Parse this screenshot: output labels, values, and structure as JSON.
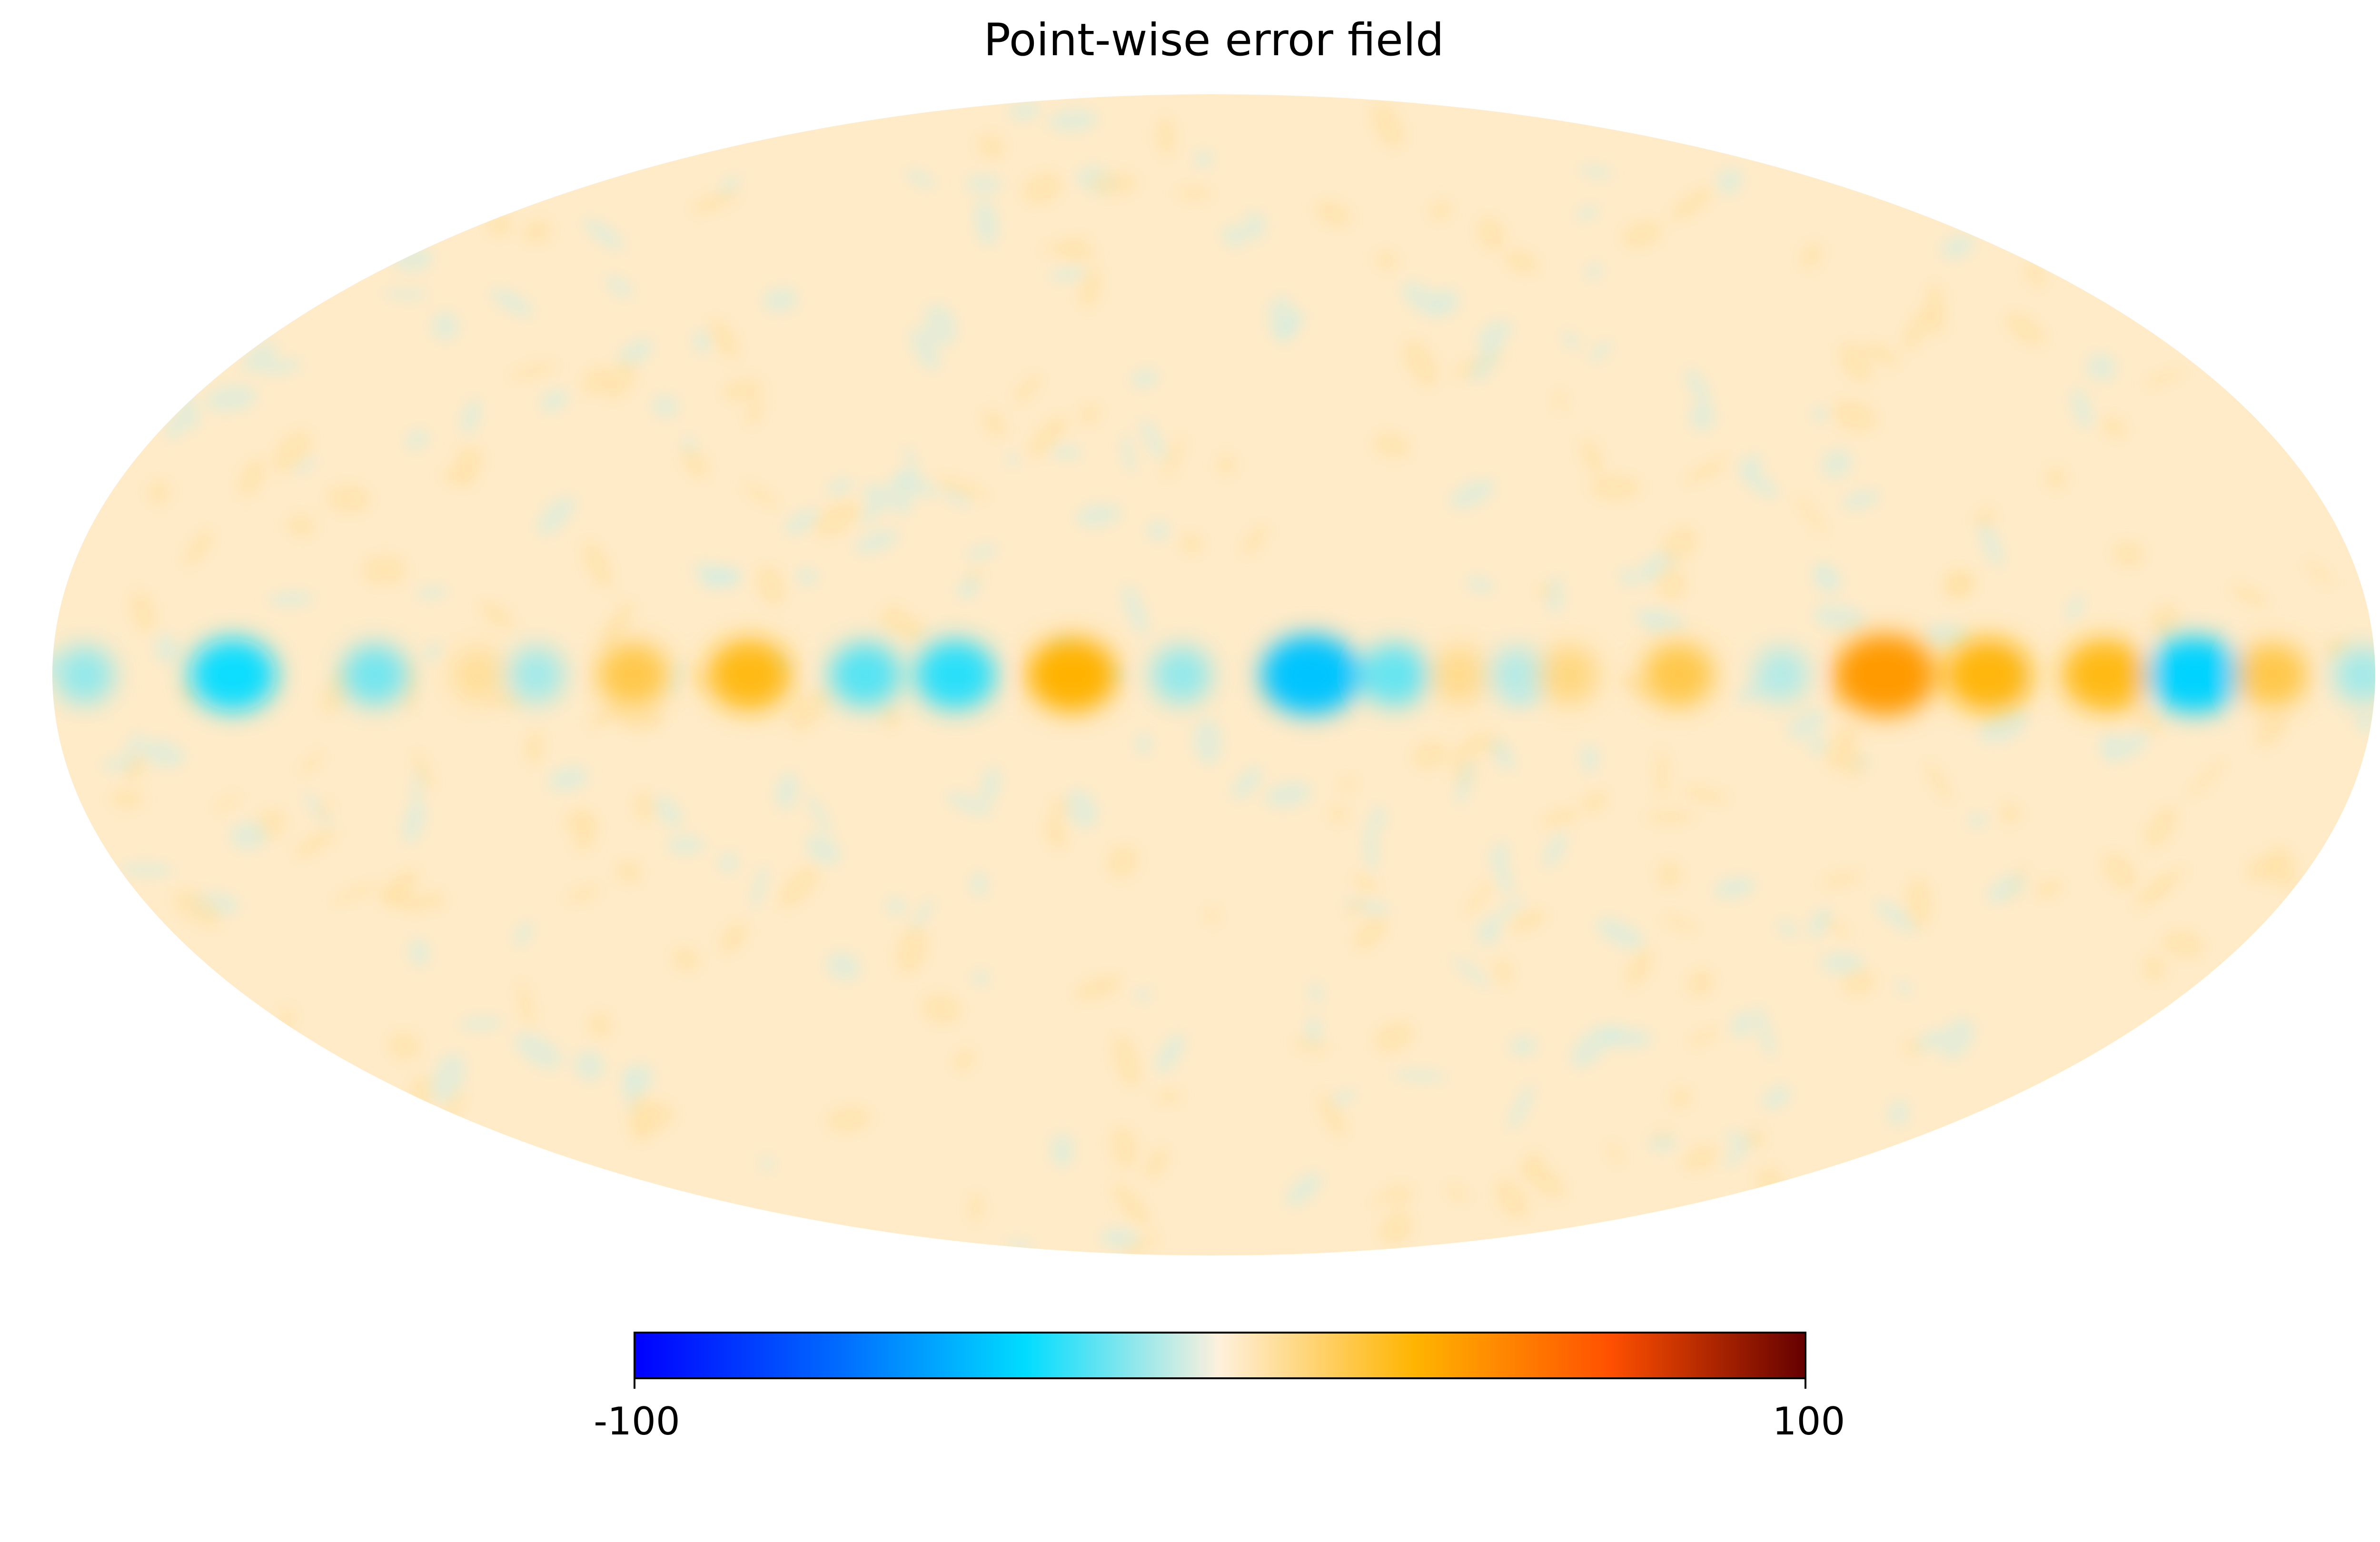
{
  "chart_data": {
    "type": "heatmap",
    "title": "Point-wise error field",
    "projection": "mollweide",
    "colormap": {
      "name": "planck-like diverging",
      "stops": [
        "#0000ff",
        "#0066ff",
        "#00dcff",
        "#fff0dc",
        "#ffb400",
        "#ff5000",
        "#640000"
      ]
    },
    "colorbar": {
      "min": -100,
      "max": 100,
      "tick_labels": [
        "-100",
        "100"
      ],
      "orientation": "horizontal",
      "placement": "bottom"
    },
    "background_value": 3,
    "equatorial_band": [
      {
        "lon": 175,
        "value": -14
      },
      {
        "lon": 152,
        "value": -32
      },
      {
        "lon": 130,
        "value": -18
      },
      {
        "lon": 114,
        "value": 10
      },
      {
        "lon": 105,
        "value": -12
      },
      {
        "lon": 90,
        "value": 22
      },
      {
        "lon": 72,
        "value": 30
      },
      {
        "lon": 54,
        "value": -22
      },
      {
        "lon": 40,
        "value": -28
      },
      {
        "lon": 22,
        "value": 34
      },
      {
        "lon": 5,
        "value": -14
      },
      {
        "lon": -15,
        "value": -40
      },
      {
        "lon": -28,
        "value": -20
      },
      {
        "lon": -38,
        "value": 12
      },
      {
        "lon": -47,
        "value": -10
      },
      {
        "lon": -55,
        "value": 14
      },
      {
        "lon": -72,
        "value": 22
      },
      {
        "lon": -88,
        "value": -10
      },
      {
        "lon": -104,
        "value": 42
      },
      {
        "lon": -120,
        "value": 32
      },
      {
        "lon": -138,
        "value": 30
      },
      {
        "lon": -152,
        "value": -36
      },
      {
        "lon": -164,
        "value": 22
      },
      {
        "lon": -178,
        "value": -12
      }
    ],
    "grid": false
  }
}
